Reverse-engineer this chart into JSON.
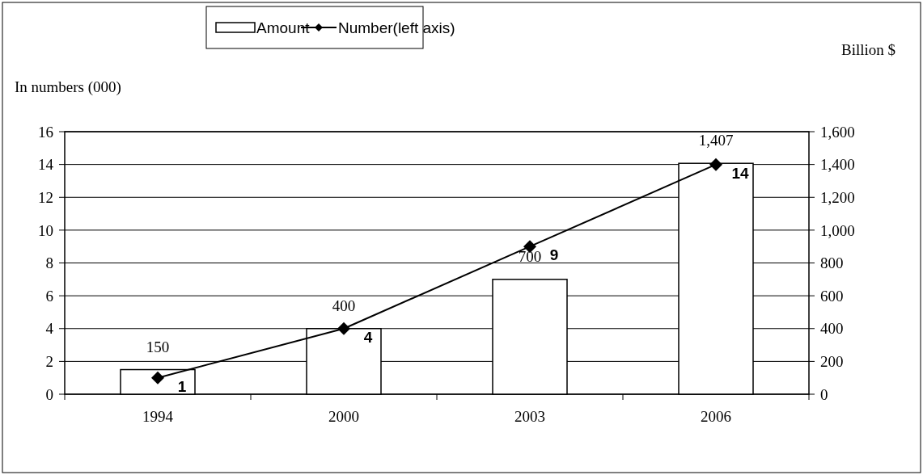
{
  "chart_data": {
    "type": "bar",
    "categories": [
      "1994",
      "2000",
      "2003",
      "2006"
    ],
    "series": [
      {
        "name": "Amount",
        "axis": "y2",
        "color": "#ffffff",
        "values": [
          150,
          400,
          700,
          1407
        ],
        "value_labels": [
          "150",
          "400",
          "700",
          "1,407"
        ]
      },
      {
        "name": "Number(left axis)",
        "type": "line",
        "color": "#000000",
        "values": [
          1,
          4,
          9,
          14
        ],
        "value_labels": [
          "1",
          "4",
          "9",
          "14"
        ]
      }
    ],
    "ylabel": "In numbers (000)",
    "y2label": "Billion $",
    "ylim": [
      0,
      16
    ],
    "yticks": [
      0,
      2,
      4,
      6,
      8,
      10,
      12,
      14,
      16
    ],
    "y2lim": [
      0,
      1600
    ],
    "y2ticks": [
      0,
      200,
      400,
      600,
      800,
      {
        "value": 1000,
        "label": "1,000"
      },
      {
        "value": 1200,
        "label": "1,200"
      },
      {
        "value": 1400,
        "label": "1,400"
      },
      {
        "value": 1600,
        "label": "1,600"
      }
    ],
    "grid": "y",
    "legend": "top",
    "marker": "diamond",
    "line_style": "solid"
  }
}
